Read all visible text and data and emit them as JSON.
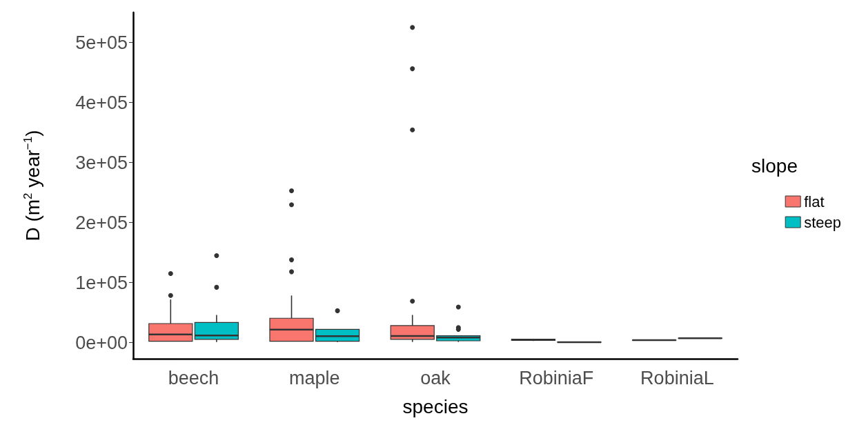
{
  "chart_data": {
    "type": "box",
    "xlabel": "species",
    "ylabel": "D (m$^{2}$ year$^{−1}$)",
    "legend_title": "slope",
    "legend": "right",
    "grid": false,
    "categories": [
      "beech",
      "maple",
      "oak",
      "RobiniaF",
      "RobiniaL"
    ],
    "ylim": [
      -27000,
      550000
    ],
    "yticks": [
      {
        "value": 0,
        "label": "0e+00"
      },
      {
        "value": 100000,
        "label": "1e+05"
      },
      {
        "value": 200000,
        "label": "2e+05"
      },
      {
        "value": 300000,
        "label": "3e+05"
      },
      {
        "value": 400000,
        "label": "4e+05"
      },
      {
        "value": 500000,
        "label": "5e+05"
      }
    ],
    "series": [
      {
        "name": "flat",
        "color": "#f8766d",
        "boxes": [
          {
            "low": 2100,
            "q1": 2100,
            "median": 13600,
            "q3": 31600,
            "high": 71800,
            "outliers": [
              78400,
              115000
            ]
          },
          {
            "low": 2100,
            "q1": 2100,
            "median": 21700,
            "q3": 40500,
            "high": 78400,
            "outliers": [
              118000,
              137800,
              229600,
              252800
            ]
          },
          {
            "low": 1000,
            "q1": 5400,
            "median": 11000,
            "q3": 28300,
            "high": 46000,
            "outliers": [
              68900,
              354400,
              456200,
              525100
            ]
          },
          {
            "low": 2500,
            "q1": 3500,
            "median": 4500,
            "q3": 5500,
            "high": 5500
          },
          {
            "low": 3500,
            "q1": 3700,
            "median": 4000,
            "q3": 4300,
            "high": 4500
          }
        ]
      },
      {
        "name": "steep",
        "color": "#00bfc4",
        "boxes": [
          {
            "low": 1000,
            "q1": 5400,
            "median": 11700,
            "q3": 33500,
            "high": 46000,
            "outliers": [
              92100,
              144800
            ]
          },
          {
            "low": 1000,
            "q1": 2100,
            "median": 10600,
            "q3": 22000,
            "high": 22000,
            "outliers": [
              53000
            ]
          },
          {
            "low": 1000,
            "q1": 2900,
            "median": 8400,
            "q3": 11400,
            "high": 11400,
            "outliers": [
              22000,
              25000,
              59300
            ]
          },
          {
            "low": 0,
            "q1": 300,
            "median": 700,
            "q3": 1000,
            "high": 1000
          },
          {
            "low": 7000,
            "q1": 7100,
            "median": 7300,
            "q3": 7500,
            "high": 7600
          }
        ]
      }
    ]
  }
}
